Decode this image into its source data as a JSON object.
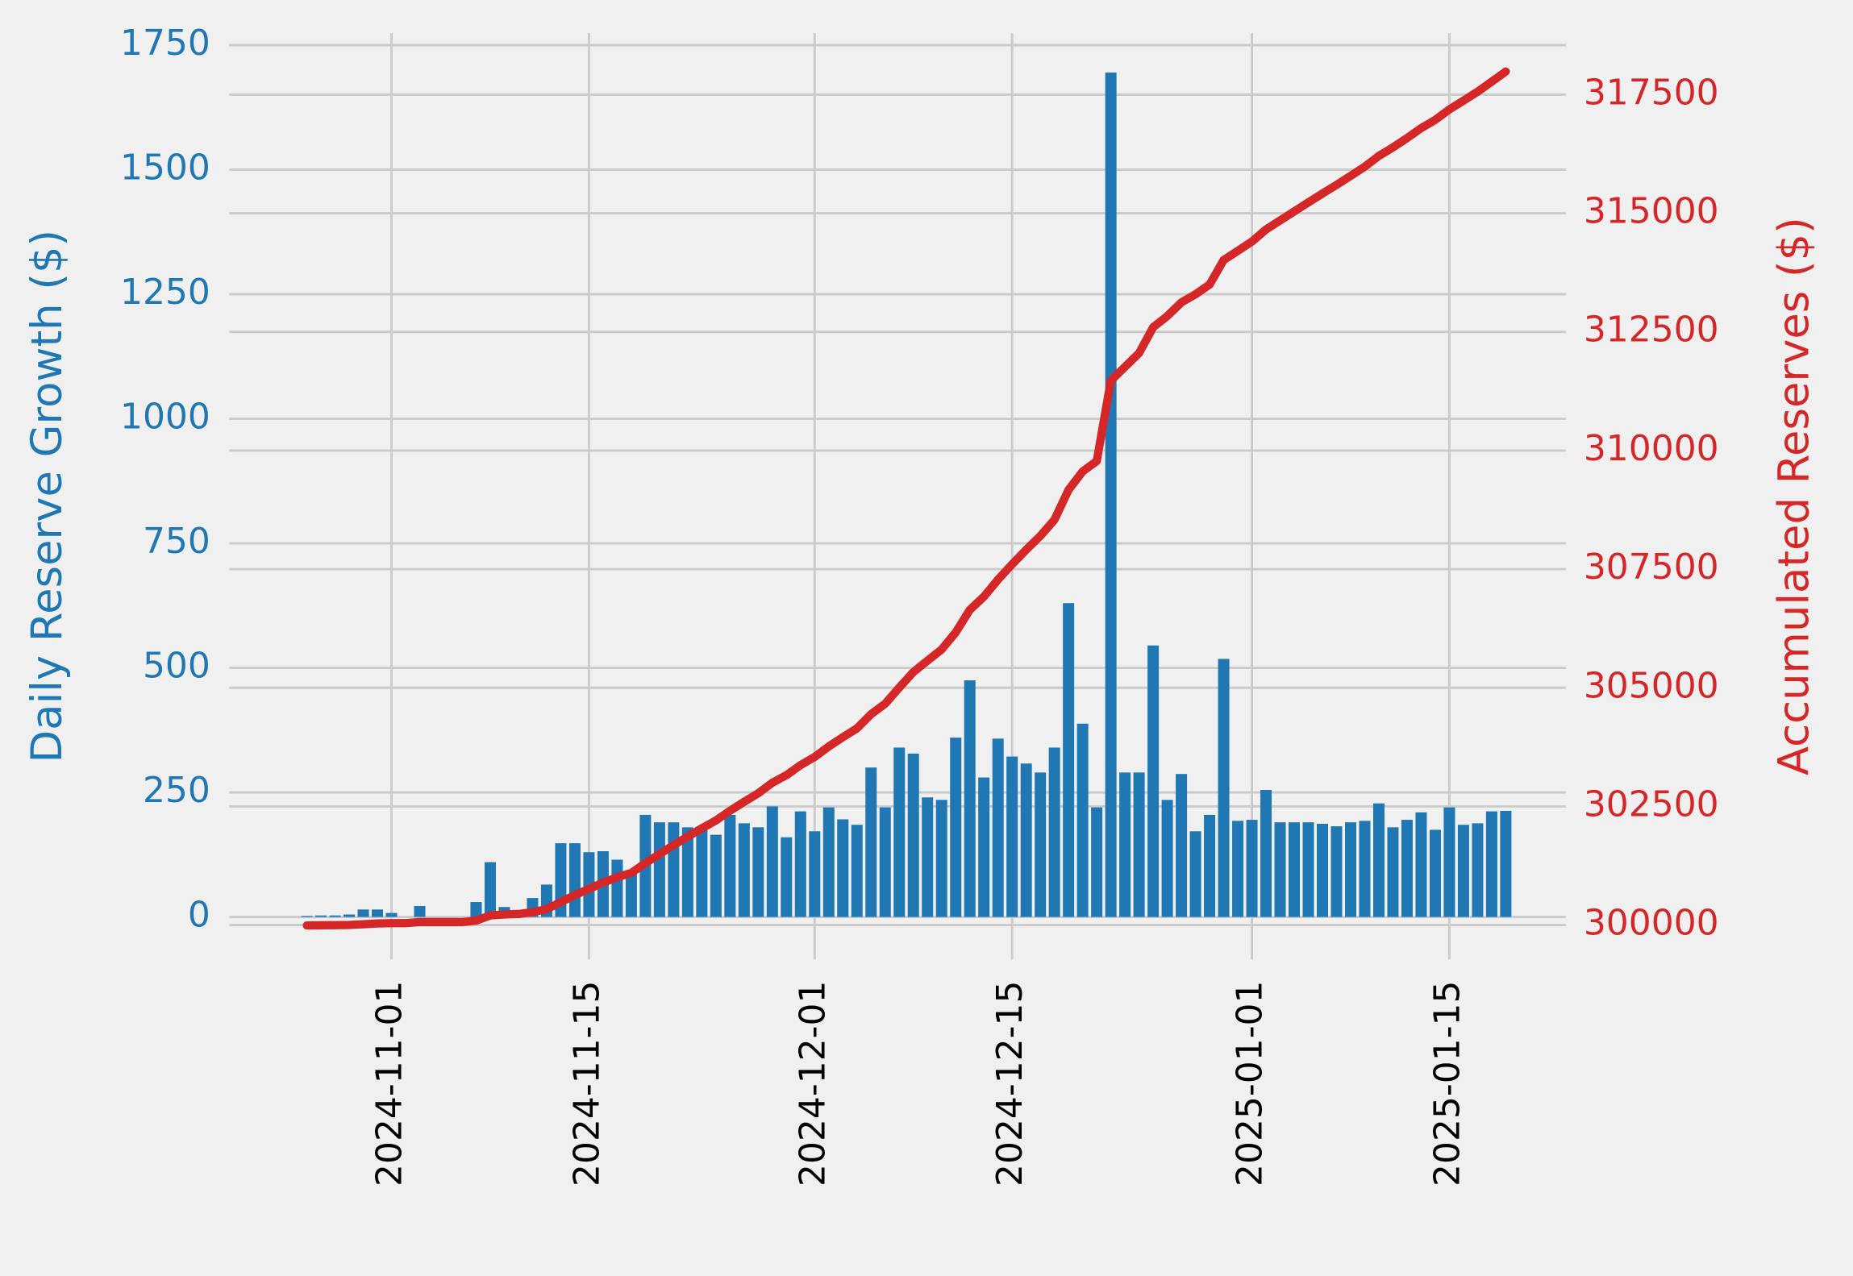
{
  "chart_data": {
    "type": "bar_line",
    "x": [
      "2024-10-26",
      "2024-10-27",
      "2024-10-28",
      "2024-10-29",
      "2024-10-30",
      "2024-10-31",
      "2024-11-01",
      "2024-11-02",
      "2024-11-03",
      "2024-11-04",
      "2024-11-05",
      "2024-11-06",
      "2024-11-07",
      "2024-11-08",
      "2024-11-09",
      "2024-11-10",
      "2024-11-11",
      "2024-11-12",
      "2024-11-13",
      "2024-11-14",
      "2024-11-15",
      "2024-11-16",
      "2024-11-17",
      "2024-11-18",
      "2024-11-19",
      "2024-11-20",
      "2024-11-21",
      "2024-11-22",
      "2024-11-23",
      "2024-11-24",
      "2024-11-25",
      "2024-11-26",
      "2024-11-27",
      "2024-11-28",
      "2024-11-29",
      "2024-11-30",
      "2024-12-01",
      "2024-12-02",
      "2024-12-03",
      "2024-12-04",
      "2024-12-05",
      "2024-12-06",
      "2024-12-07",
      "2024-12-08",
      "2024-12-09",
      "2024-12-10",
      "2024-12-11",
      "2024-12-12",
      "2024-12-13",
      "2024-12-14",
      "2024-12-15",
      "2024-12-16",
      "2024-12-17",
      "2024-12-18",
      "2024-12-19",
      "2024-12-20",
      "2024-12-21",
      "2024-12-22",
      "2024-12-23",
      "2024-12-24",
      "2024-12-25",
      "2024-12-26",
      "2024-12-27",
      "2024-12-28",
      "2024-12-29",
      "2024-12-30",
      "2024-12-31",
      "2025-01-01",
      "2025-01-02",
      "2025-01-03",
      "2025-01-04",
      "2025-01-05",
      "2025-01-06",
      "2025-01-07",
      "2025-01-08",
      "2025-01-09",
      "2025-01-10",
      "2025-01-11",
      "2025-01-12",
      "2025-01-13",
      "2025-01-14",
      "2025-01-15",
      "2025-01-16",
      "2025-01-17",
      "2025-01-18",
      "2025-01-19"
    ],
    "series": [
      {
        "name": "Daily Reserve Growth ($)",
        "type": "bar",
        "color": "#1f77b4",
        "axis": "y",
        "values": [
          2,
          3,
          3,
          5,
          15,
          15,
          8,
          0,
          22,
          0,
          0,
          0,
          30,
          110,
          20,
          10,
          38,
          65,
          148,
          148,
          130,
          132,
          115,
          90,
          205,
          190,
          190,
          180,
          175,
          165,
          205,
          188,
          180,
          222,
          160,
          212,
          172,
          220,
          196,
          185,
          300,
          220,
          340,
          328,
          240,
          235,
          360,
          475,
          280,
          358,
          322,
          308,
          290,
          340,
          630,
          388,
          220,
          1695,
          290,
          290,
          545,
          235,
          287,
          172,
          205,
          518,
          193,
          195,
          255,
          190,
          190,
          190,
          187,
          182,
          190,
          193,
          228,
          180,
          195,
          210,
          175,
          220,
          185,
          188,
          212,
          213
        ]
      },
      {
        "name": "Accumulated Reserves ($)",
        "type": "line",
        "color": "#d62728",
        "axis": "y2",
        "values": [
          299992,
          299995,
          299998,
          300003,
          300018,
          300033,
          300041,
          300041,
          300063,
          300063,
          300063,
          300063,
          300093,
          300203,
          300223,
          300233,
          300271,
          300336,
          300484,
          300632,
          300762,
          300894,
          301009,
          301099,
          301304,
          301494,
          301684,
          301864,
          302039,
          302204,
          302409,
          302597,
          302777,
          302999,
          303159,
          303371,
          303543,
          303763,
          303959,
          304144,
          304444,
          304664,
          305004,
          305332,
          305572,
          305807,
          306167,
          306642,
          306922,
          307280,
          307602,
          307910,
          308200,
          308540,
          309170,
          309558,
          309778,
          311473,
          311763,
          312053,
          312598,
          312833,
          313120,
          313292,
          313497,
          314015,
          314208,
          314403,
          314658,
          314848,
          315038,
          315228,
          315415,
          315597,
          315787,
          315980,
          316208,
          316388,
          316583,
          316793,
          316968,
          317188,
          317373,
          317561,
          317773,
          317986
        ]
      }
    ],
    "xlim": [
      "2024-10-21",
      "2025-01-22"
    ],
    "xticks": [
      "2024-11-01",
      "2024-11-15",
      "2024-12-01",
      "2024-12-15",
      "2025-01-01",
      "2025-01-15"
    ],
    "ylim": [
      -85,
      1793
    ],
    "yticks": [
      0,
      250,
      500,
      750,
      1000,
      1250,
      1500,
      1750
    ],
    "y2lim": [
      299278,
      318994
    ],
    "y2ticks": [
      300000,
      302500,
      305000,
      307500,
      310000,
      312500,
      315000,
      317500
    ],
    "grid": true
  }
}
